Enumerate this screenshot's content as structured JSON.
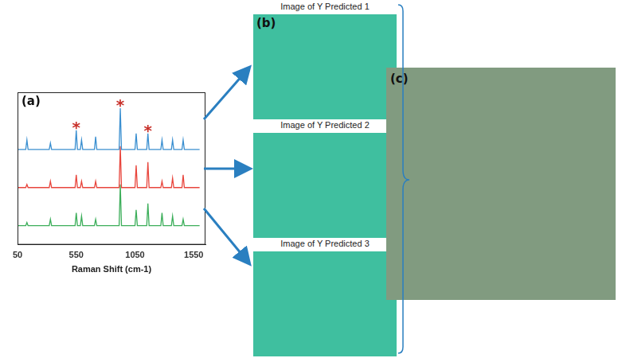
{
  "chart_data": {
    "type": "line",
    "title": "(a)",
    "x_label": "Raman Shift (cm-1)",
    "x": [
      50,
      120,
      130,
      140,
      320,
      330,
      340,
      540,
      550,
      560,
      585,
      595,
      605,
      705,
      715,
      725,
      915,
      925,
      935,
      1050,
      1060,
      1070,
      1150,
      1160,
      1170,
      1270,
      1280,
      1290,
      1360,
      1370,
      1380,
      1450,
      1460,
      1470,
      1600
    ],
    "series": [
      {
        "color": "#3a8fd0",
        "values": [
          3.0,
          3.0,
          3.3,
          3.0,
          3.0,
          3.2,
          3.0,
          3.0,
          3.6,
          3.0,
          3.0,
          3.3,
          3.0,
          3.0,
          3.4,
          3.0,
          3.0,
          4.3,
          3.0,
          3.0,
          3.5,
          3.0,
          3.0,
          3.5,
          3.0,
          3.0,
          3.3,
          3.0,
          3.0,
          3.3,
          3.0,
          3.0,
          3.3,
          3.0,
          3.0
        ]
      },
      {
        "color": "#e8453c",
        "values": [
          1.8,
          1.8,
          1.9,
          1.8,
          1.8,
          2.0,
          1.8,
          1.8,
          2.2,
          1.8,
          1.8,
          2.0,
          1.8,
          1.8,
          2.0,
          1.8,
          1.8,
          3.1,
          1.8,
          1.8,
          2.5,
          1.8,
          1.8,
          2.6,
          1.8,
          1.8,
          2.0,
          1.8,
          1.8,
          2.1,
          1.8,
          1.8,
          2.2,
          1.8,
          1.8
        ]
      },
      {
        "color": "#3cae5a",
        "values": [
          0.6,
          0.6,
          0.7,
          0.6,
          0.6,
          0.8,
          0.6,
          0.6,
          1.0,
          0.6,
          0.6,
          0.9,
          0.6,
          0.6,
          0.8,
          0.6,
          0.6,
          1.9,
          0.6,
          0.6,
          1.1,
          0.6,
          0.6,
          1.3,
          0.6,
          0.6,
          1.0,
          0.6,
          0.6,
          0.9,
          0.6,
          0.6,
          0.8,
          0.6,
          0.6
        ]
      }
    ],
    "xlim": [
      50,
      1650
    ],
    "xticks": [
      50,
      550,
      1050,
      1550
    ],
    "ylim": [
      0,
      4.8
    ],
    "tick_labels": "x",
    "grid": false,
    "annotations": [
      {
        "text": "*",
        "x": 550,
        "y": 3.75
      },
      {
        "text": "*",
        "x": 925,
        "y": 4.45
      },
      {
        "text": "*",
        "x": 1160,
        "y": 3.65
      }
    ]
  },
  "images": {
    "label": "(b)",
    "titles": [
      "Image of Y Predicted 1",
      "Image of Y Predicted 2",
      "Image of Y Predicted 3"
    ]
  },
  "composite": {
    "label": "(c)"
  }
}
